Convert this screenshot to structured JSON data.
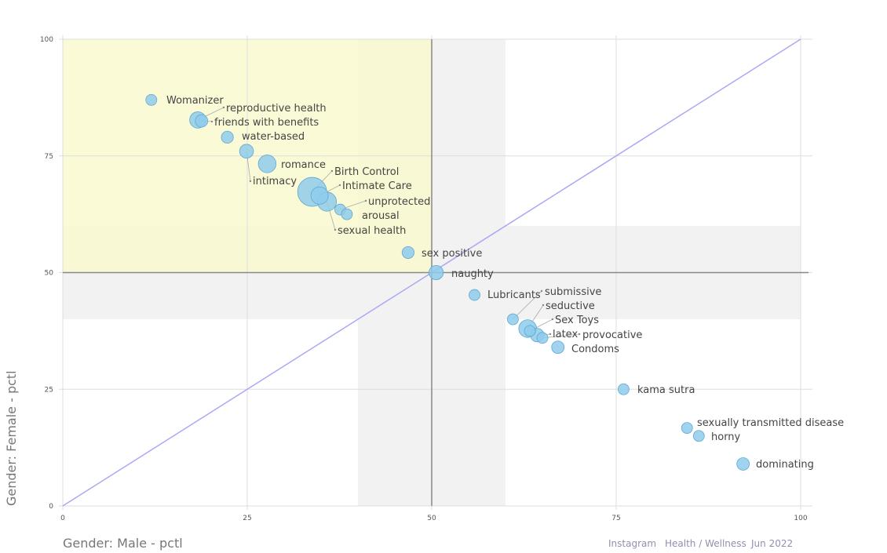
{
  "chart_data": {
    "type": "scatter",
    "xlabel": "Gender: Male - pctl",
    "ylabel": "Gender: Female - pctl",
    "xlim": [
      0,
      100
    ],
    "ylim": [
      0,
      100
    ],
    "xticks": [
      "0",
      "25",
      "50",
      "75",
      "100"
    ],
    "yticks": [
      "0",
      "25",
      "50",
      "75",
      "100"
    ],
    "grid": true,
    "reference_lines": {
      "vertical": 50,
      "horizontal": 50,
      "diagonal": "y = x"
    },
    "highlight_bands": {
      "x": [
        40,
        60
      ],
      "y": [
        40,
        60
      ]
    },
    "highlight_quadrant": {
      "x": [
        0,
        50
      ],
      "y": [
        50,
        100
      ]
    },
    "colors": {
      "bubble": "#8fcbeb",
      "bubble_stroke": "#5fa8d3",
      "diagonal": "#a9a9f5",
      "quadrant": "#f9f9cf",
      "band": "#f2f2f2"
    },
    "points": [
      {
        "label": "Womanizer",
        "x": 12,
        "y": 87,
        "size": 1
      },
      {
        "label": "reproductive health",
        "x": 18.3,
        "y": 82.7,
        "size": 2.2
      },
      {
        "label": "friends with benefits",
        "x": 18.8,
        "y": 82.5,
        "size": 1.3
      },
      {
        "label": "water-based",
        "x": 22.3,
        "y": 79,
        "size": 1.2
      },
      {
        "label": "intimacy",
        "x": 24.9,
        "y": 76,
        "size": 1.6
      },
      {
        "label": "romance",
        "x": 27.7,
        "y": 73.3,
        "size": 2.6
      },
      {
        "label": "Birth Control",
        "x": 33.8,
        "y": 67.3,
        "size": 7
      },
      {
        "label": "Intimate Care",
        "x": 34.8,
        "y": 66.5,
        "size": 2.5
      },
      {
        "label": "sexual health",
        "x": 35.8,
        "y": 65.2,
        "size": 3
      },
      {
        "label": "unprotected",
        "x": 37.6,
        "y": 63.5,
        "size": 1
      },
      {
        "label": "arousal",
        "x": 38.5,
        "y": 62.5,
        "size": 1
      },
      {
        "label": "sex positive",
        "x": 46.8,
        "y": 54.3,
        "size": 1.2
      },
      {
        "label": "naughty",
        "x": 50.6,
        "y": 50,
        "size": 1.7
      },
      {
        "label": "Lubricants",
        "x": 55.8,
        "y": 45.2,
        "size": 1
      },
      {
        "label": "submissive",
        "x": 61,
        "y": 40,
        "size": 1
      },
      {
        "label": "seductive",
        "x": 63,
        "y": 38,
        "size": 2.6
      },
      {
        "label": "Sex Toys",
        "x": 63.3,
        "y": 37.5,
        "size": 1
      },
      {
        "label": "latex",
        "x": 64.3,
        "y": 36.6,
        "size": 1.5
      },
      {
        "label": "provocative",
        "x": 65,
        "y": 36,
        "size": 1
      },
      {
        "label": "Condoms",
        "x": 67.1,
        "y": 34,
        "size": 1.3
      },
      {
        "label": "kama sutra",
        "x": 76,
        "y": 25,
        "size": 1
      },
      {
        "label": "sexually transmitted disease",
        "x": 84.6,
        "y": 16.7,
        "size": 1
      },
      {
        "label": "horny",
        "x": 86.2,
        "y": 15,
        "size": 1
      },
      {
        "label": "dominating",
        "x": 92.2,
        "y": 9,
        "size": 1.3
      }
    ]
  },
  "footer": {
    "platform": "Instagram",
    "category": "Health / Wellness",
    "date": "Jun 2022"
  }
}
